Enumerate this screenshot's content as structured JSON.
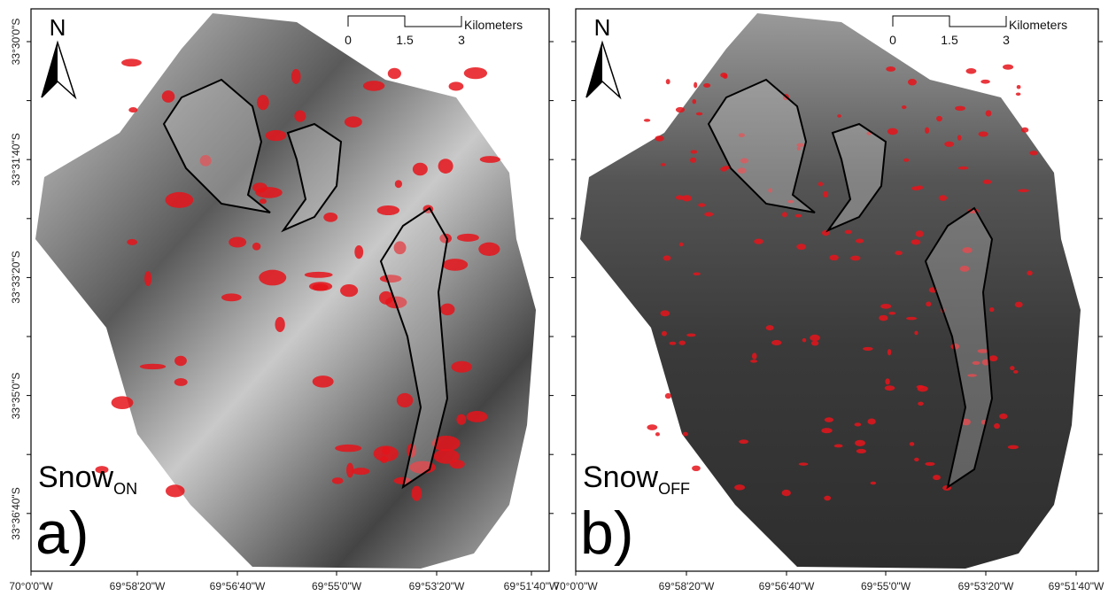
{
  "lat_labels": [
    "33°30'0\"S",
    "33°31'40\"S",
    "33°33'20\"S",
    "33°35'0\"S",
    "33°36'40\"S"
  ],
  "lon_labels": [
    "70°0'0\"W",
    "69°58'20\"W",
    "69°56'40\"W",
    "69°55'0\"W",
    "69°53'20\"W",
    "69°51'40\"W"
  ],
  "panels": [
    {
      "north": "N",
      "scale": {
        "ticks": [
          "0",
          "1.5",
          "3"
        ],
        "unit": "Kilometers"
      },
      "snow": "Snow",
      "snow_sub": "ON",
      "letter": "a)"
    },
    {
      "north": "N",
      "scale": {
        "ticks": [
          "0",
          "1.5",
          "3"
        ],
        "unit": "Kilometers"
      },
      "snow": "Snow",
      "snow_sub": "OFF",
      "letter": "b)"
    }
  ]
}
